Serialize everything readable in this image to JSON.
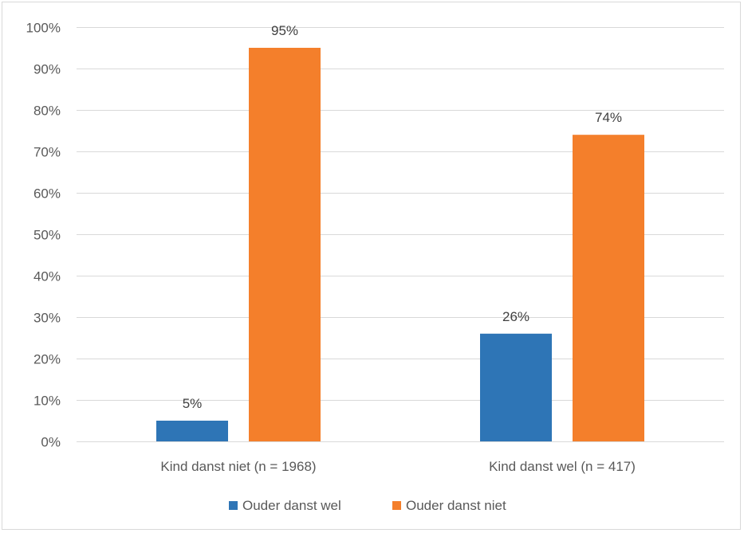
{
  "chart_data": {
    "type": "bar",
    "title": "",
    "xlabel": "",
    "ylabel": "",
    "categories": [
      "Kind danst niet (n = 1968)",
      "Kind danst wel (n = 417)"
    ],
    "series": [
      {
        "name": "Ouder danst wel",
        "values": [
          5,
          26
        ],
        "labels": [
          "5%",
          "26%"
        ],
        "color": "#2e75b6"
      },
      {
        "name": "Ouder danst niet",
        "values": [
          95,
          74
        ],
        "labels": [
          "95%",
          "74%"
        ],
        "color": "#f47f2b"
      }
    ],
    "ylim": [
      0,
      100
    ],
    "yticks": [
      "0%",
      "10%",
      "20%",
      "30%",
      "40%",
      "50%",
      "60%",
      "70%",
      "80%",
      "90%",
      "100%"
    ],
    "grid": true,
    "gridColor": "#d9d9d9",
    "legend": "bottom-center"
  }
}
